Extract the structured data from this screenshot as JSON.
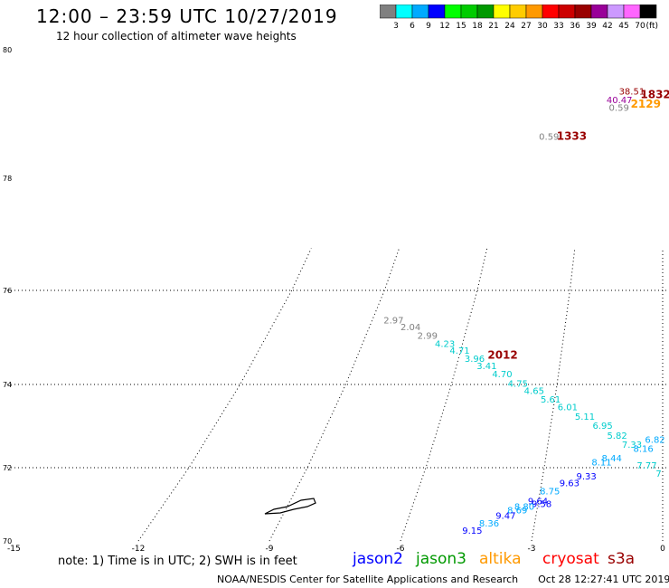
{
  "title": "12:00 – 23:59 UTC 10/27/2019",
  "subtitle": "12 hour collection of altimeter wave heights",
  "colorbar": {
    "colors": [
      "#808080",
      "#00ffff",
      "#00aaff",
      "#0000ff",
      "#00ff00",
      "#00cc00",
      "#009900",
      "#ffff00",
      "#ffcc00",
      "#ff9900",
      "#ff0000",
      "#cc0000",
      "#990000",
      "#990099",
      "#cc99ff",
      "#ff66ff",
      "#000000"
    ],
    "labels": [
      "3",
      "6",
      "9",
      "12",
      "15",
      "18",
      "21",
      "24",
      "27",
      "30",
      "33",
      "36",
      "39",
      "42",
      "45",
      "70"
    ],
    "unit": "(ft)"
  },
  "axes": {
    "lon_ticks": [
      {
        "label": "-15",
        "value": -15
      },
      {
        "label": "-12",
        "value": -12
      },
      {
        "label": "-9",
        "value": -9
      },
      {
        "label": "-6",
        "value": -6
      },
      {
        "label": "-3",
        "value": -3
      },
      {
        "label": "0",
        "value": 0
      }
    ],
    "lat_ticks": [
      {
        "label": "80",
        "value": 80
      },
      {
        "label": "78",
        "value": 78
      },
      {
        "label": "76",
        "value": 76
      },
      {
        "label": "74",
        "value": 74
      },
      {
        "label": "72",
        "value": 72
      },
      {
        "label": "70",
        "value": 70
      }
    ]
  },
  "time_labels": [
    {
      "text": "1832",
      "lon": -0.3,
      "lat": 79.25,
      "color": "#990000"
    },
    {
      "text": "2129",
      "lon": -0.7,
      "lat": 79.1,
      "color": "#ff9900"
    },
    {
      "text": "1333",
      "lon": -3.6,
      "lat": 78.6,
      "color": "#990000"
    },
    {
      "text": "2012",
      "lon": -4.7,
      "lat": 74.55,
      "color": "#990000"
    }
  ],
  "observations": [
    {
      "text": "38.51",
      "lon": -1.3,
      "lat": 79.3,
      "color": "#990000"
    },
    {
      "text": "40.47",
      "lon": -1.8,
      "lat": 79.17,
      "color": "#990099"
    },
    {
      "text": "0.59",
      "lon": -1.8,
      "lat": 79.05,
      "color": "#808080"
    },
    {
      "text": "0.59",
      "lon": -4.5,
      "lat": 78.6,
      "color": "#808080"
    },
    {
      "text": "2.97",
      "lon": -8.3,
      "lat": 75.3,
      "color": "#808080"
    },
    {
      "text": "2.04",
      "lon": -7.7,
      "lat": 75.15,
      "color": "#808080"
    },
    {
      "text": "2.99",
      "lon": -7.1,
      "lat": 74.97,
      "color": "#808080"
    },
    {
      "text": "4.23",
      "lon": -6.5,
      "lat": 74.8,
      "color": "#00cccc"
    },
    {
      "text": "4.71",
      "lon": -6.0,
      "lat": 74.65,
      "color": "#00cccc"
    },
    {
      "text": "3.96",
      "lon": -5.5,
      "lat": 74.48,
      "color": "#00cccc"
    },
    {
      "text": "3.41",
      "lon": -5.1,
      "lat": 74.33,
      "color": "#00cccc"
    },
    {
      "text": "4.70",
      "lon": -4.6,
      "lat": 74.15,
      "color": "#00cccc"
    },
    {
      "text": "4.75",
      "lon": -4.1,
      "lat": 73.95,
      "color": "#00cccc"
    },
    {
      "text": "4.65",
      "lon": -3.6,
      "lat": 73.77,
      "color": "#00cccc"
    },
    {
      "text": "5.61",
      "lon": -3.1,
      "lat": 73.57,
      "color": "#00cccc"
    },
    {
      "text": "6.01",
      "lon": -2.6,
      "lat": 73.38,
      "color": "#00cccc"
    },
    {
      "text": "5.11",
      "lon": -2.1,
      "lat": 73.15,
      "color": "#00cccc"
    },
    {
      "text": "6.95",
      "lon": -1.6,
      "lat": 72.93,
      "color": "#00cccc"
    },
    {
      "text": "5.82",
      "lon": -1.2,
      "lat": 72.7,
      "color": "#00cccc"
    },
    {
      "text": "7.33",
      "lon": -0.8,
      "lat": 72.48,
      "color": "#00cccc"
    },
    {
      "text": "8.16",
      "lon": -0.5,
      "lat": 72.38,
      "color": "#00aaff"
    },
    {
      "text": "7.77",
      "lon": -0.4,
      "lat": 71.97,
      "color": "#00cccc"
    },
    {
      "text": "7",
      "lon": -0.1,
      "lat": 71.75,
      "color": "#00cccc"
    },
    {
      "text": "6.82",
      "lon": -0.2,
      "lat": 72.6,
      "color": "#00aaff"
    },
    {
      "text": "8.44",
      "lon": -1.3,
      "lat": 72.15,
      "color": "#00aaff"
    },
    {
      "text": "8.11",
      "lon": -1.55,
      "lat": 72.05,
      "color": "#00aaff"
    },
    {
      "text": "9.33",
      "lon": -1.9,
      "lat": 71.68,
      "color": "#0000ff"
    },
    {
      "text": "9.63",
      "lon": -2.3,
      "lat": 71.5,
      "color": "#0000ff"
    },
    {
      "text": "8.75",
      "lon": -2.75,
      "lat": 71.27,
      "color": "#00aaff"
    },
    {
      "text": "9.64",
      "lon": -3.0,
      "lat": 71.0,
      "color": "#0000ff"
    },
    {
      "text": "9.58",
      "lon": -2.9,
      "lat": 70.93,
      "color": "#0000ff"
    },
    {
      "text": "8.80",
      "lon": -3.3,
      "lat": 70.85,
      "color": "#00aaff"
    },
    {
      "text": "8.69",
      "lon": -3.45,
      "lat": 70.75,
      "color": "#00aaff"
    },
    {
      "text": "9.47",
      "lon": -3.7,
      "lat": 70.6,
      "color": "#0000ff"
    },
    {
      "text": "8.36",
      "lon": -4.05,
      "lat": 70.4,
      "color": "#00aaff"
    },
    {
      "text": "9.15",
      "lon": -4.4,
      "lat": 70.2,
      "color": "#0000ff"
    }
  ],
  "legend": {
    "note": "note:  1) Time is in UTC;  2) SWH is in feet",
    "satellites": [
      {
        "name": "jason2",
        "color": "#0000ff"
      },
      {
        "name": "jason3",
        "color": "#009900"
      },
      {
        "name": "altika",
        "color": "#ff9900"
      },
      {
        "name": "cryosat",
        "color": "#ff0000"
      },
      {
        "name": "s3a",
        "color": "#990000"
      }
    ]
  },
  "footer": {
    "source": "NOAA/NESDIS Center for Satellite Applications and Research",
    "timestamp": "Oct 28 12:27:41 UTC 2019"
  }
}
